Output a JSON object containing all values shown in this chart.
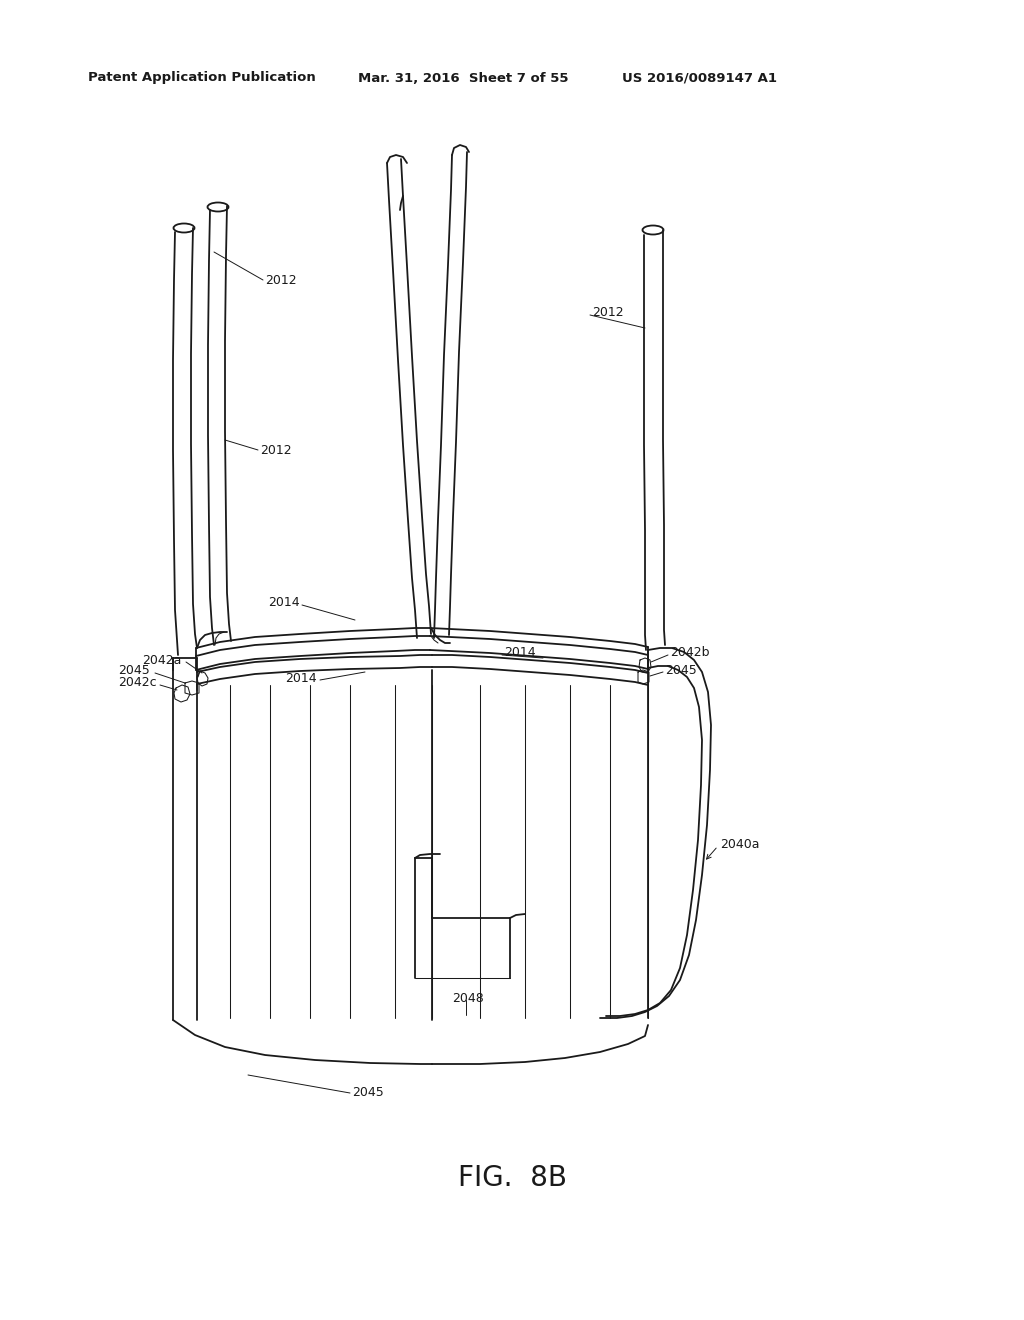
{
  "bg_color": "#ffffff",
  "line_color": "#1a1a1a",
  "header_left": "Patent Application Publication",
  "header_mid": "Mar. 31, 2016  Sheet 7 of 55",
  "header_right": "US 2016/0089147 A1",
  "figure_label": "FIG.  8B",
  "lw": 1.3,
  "lwt": 0.75,
  "lwa": 0.7
}
